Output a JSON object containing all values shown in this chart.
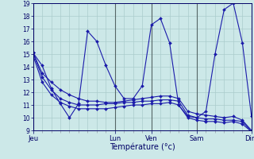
{
  "background_color": "#cce8e8",
  "grid_color": "#aacccc",
  "line_color": "#1a1aaa",
  "xlabel": "Température (°c)",
  "ylim": [
    9,
    19
  ],
  "yticks": [
    9,
    10,
    11,
    12,
    13,
    14,
    15,
    16,
    17,
    18,
    19
  ],
  "x_tick_labels": [
    "Jeu",
    "Lun",
    "Ven",
    "Sam",
    "Dim"
  ],
  "x_tick_positions": [
    0,
    9,
    13,
    18,
    24
  ],
  "n_points": 25,
  "series": [
    [
      15.1,
      14.1,
      12.3,
      11.1,
      10.0,
      11.1,
      16.8,
      16.0,
      14.1,
      12.5,
      11.5,
      11.5,
      12.5,
      17.3,
      17.8,
      15.9,
      11.0,
      10.1,
      10.0,
      10.5,
      15.0,
      18.5,
      19.0,
      15.9,
      10.1
    ],
    [
      15.1,
      13.5,
      12.8,
      12.2,
      11.8,
      11.5,
      11.3,
      11.3,
      11.2,
      11.2,
      11.3,
      11.4,
      11.5,
      11.6,
      11.7,
      11.7,
      11.5,
      10.5,
      10.3,
      10.2,
      10.1,
      10.0,
      10.1,
      9.8,
      9.0
    ],
    [
      15.1,
      13.2,
      12.2,
      11.5,
      11.2,
      11.0,
      11.0,
      11.0,
      11.1,
      11.1,
      11.2,
      11.2,
      11.3,
      11.3,
      11.4,
      11.4,
      11.3,
      10.2,
      10.0,
      9.9,
      9.9,
      9.8,
      9.8,
      9.7,
      8.9
    ],
    [
      14.9,
      12.8,
      11.8,
      11.2,
      10.9,
      10.7,
      10.7,
      10.7,
      10.7,
      10.8,
      10.9,
      11.0,
      11.0,
      11.1,
      11.1,
      11.2,
      11.0,
      10.0,
      9.8,
      9.7,
      9.7,
      9.6,
      9.7,
      9.5,
      8.9
    ]
  ]
}
